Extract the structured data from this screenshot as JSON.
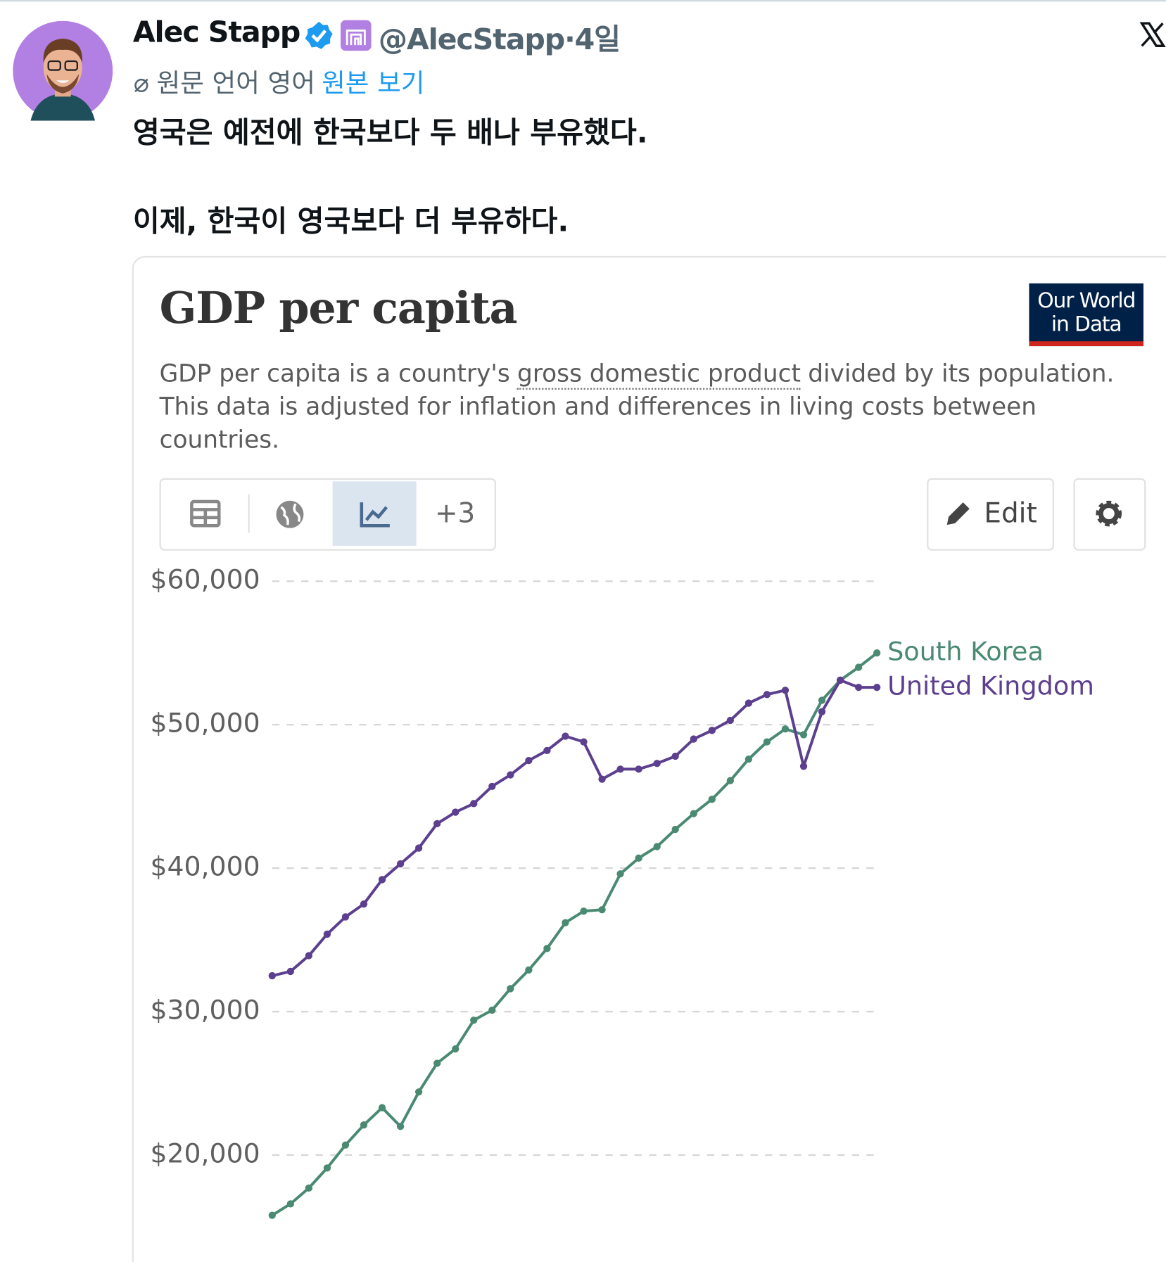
{
  "tweet": {
    "author": "Alec Stapp",
    "handle": "@AlecStapp",
    "separator": "·",
    "time": "4일",
    "translation_note": "원문 언어 영어",
    "show_original": "원본 보기",
    "text": [
      "영국은 예전에 한국보다 두 배나 부유했다.",
      "이제, 한국이 영국보다 더 부유하다."
    ]
  },
  "card": {
    "logo": [
      "Our World",
      "in Data"
    ],
    "subtitle": {
      "line1": [
        "GDP per capita is a country's",
        "gross domestic product",
        "divided by its population."
      ],
      "line2": "This data is adjusted for inflation and differences in living costs between",
      "line3": "countries."
    },
    "tabs_more": "+3",
    "edit": "Edit"
  },
  "chart_data": {
    "type": "line",
    "title": "GDP per capita",
    "series": [
      {
        "name": "South Korea",
        "color": "#4a8a72",
        "values": [
          15800,
          16600,
          17700,
          19100,
          20700,
          22100,
          23300,
          22000,
          24400,
          26400,
          27400,
          29400,
          30100,
          31600,
          32900,
          34400,
          36200,
          37000,
          37100,
          39600,
          40700,
          41500,
          42700,
          43800,
          44800,
          46100,
          47600,
          48800,
          49700,
          49300,
          51700,
          53100,
          54000,
          55000
        ]
      },
      {
        "name": "United Kingdom",
        "color": "#5c3f8e",
        "values": [
          32500,
          32800,
          33900,
          35400,
          36600,
          37500,
          39200,
          40300,
          41400,
          43100,
          43900,
          44500,
          45700,
          46500,
          47500,
          48200,
          49200,
          48800,
          46200,
          46900,
          46900,
          47300,
          47800,
          49000,
          49600,
          50300,
          51500,
          52100,
          52400,
          47100,
          50900,
          53100,
          52600,
          52600
        ]
      }
    ],
    "ylim": [
      15000,
      60000
    ],
    "yticks": [
      {
        "value": 20000,
        "label": "$20,000"
      },
      {
        "value": 30000,
        "label": "$30,000"
      },
      {
        "value": 40000,
        "label": "$40,000"
      },
      {
        "value": 50000,
        "label": "$50,000"
      },
      {
        "value": 60000,
        "label": "$60,000"
      }
    ],
    "grid": true
  }
}
